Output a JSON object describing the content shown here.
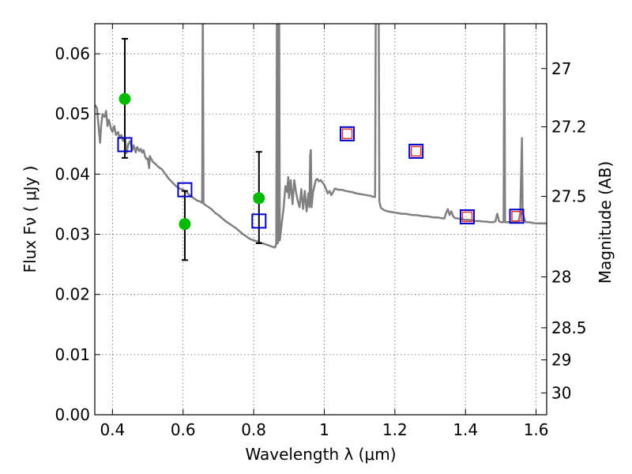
{
  "chart_data": {
    "type": "scatter",
    "title": "",
    "xlabel": "Wavelength  λ (μm)",
    "ylabel": "Flux  Fν  ( μJy )",
    "ylabel_right": "Magnitude (AB)",
    "xlim": [
      0.35,
      1.63
    ],
    "ylim": [
      0.0,
      0.065
    ],
    "grid": true,
    "x_ticks": [
      0.4,
      0.6,
      0.8,
      1.0,
      1.2,
      1.4,
      1.6
    ],
    "x_tick_labels": [
      "0.4",
      "0.6",
      "0.8",
      "1",
      "1.2",
      "1.4",
      "1.6"
    ],
    "y_ticks": [
      0.0,
      0.01,
      0.02,
      0.03,
      0.04,
      0.05,
      0.06
    ],
    "y_tick_labels": [
      "0.00",
      "0.01",
      "0.02",
      "0.03",
      "0.04",
      "0.05",
      "0.06"
    ],
    "right_ticks": [
      {
        "label": "27",
        "mag": 27.0
      },
      {
        "label": "27.2",
        "mag": 27.2
      },
      {
        "label": "27.5",
        "mag": 27.5
      },
      {
        "label": "28",
        "mag": 28.0
      },
      {
        "label": "28.5",
        "mag": 28.5
      },
      {
        "label": "29",
        "mag": 29.0
      },
      {
        "label": "30",
        "mag": 30.0
      }
    ],
    "series": [
      {
        "kind": "line",
        "color": "#808080",
        "points": [
          [
            0.35,
            0.0515
          ],
          [
            0.356,
            0.051
          ],
          [
            0.362,
            0.047
          ],
          [
            0.365,
            0.0452
          ],
          [
            0.368,
            0.048
          ],
          [
            0.372,
            0.05
          ],
          [
            0.378,
            0.0495
          ],
          [
            0.382,
            0.0505
          ],
          [
            0.386,
            0.048
          ],
          [
            0.39,
            0.049
          ],
          [
            0.396,
            0.0475
          ],
          [
            0.4,
            0.047
          ],
          [
            0.405,
            0.048
          ],
          [
            0.41,
            0.0465
          ],
          [
            0.416,
            0.047
          ],
          [
            0.42,
            0.046
          ],
          [
            0.425,
            0.0465
          ],
          [
            0.43,
            0.0455
          ],
          [
            0.436,
            0.046
          ],
          [
            0.44,
            0.0435
          ],
          [
            0.445,
            0.045
          ],
          [
            0.45,
            0.0455
          ],
          [
            0.456,
            0.044
          ],
          [
            0.46,
            0.0448
          ],
          [
            0.466,
            0.0436
          ],
          [
            0.47,
            0.0445
          ],
          [
            0.476,
            0.0438
          ],
          [
            0.48,
            0.0442
          ],
          [
            0.484,
            0.0436
          ],
          [
            0.488,
            0.044
          ],
          [
            0.492,
            0.043
          ],
          [
            0.496,
            0.0425
          ],
          [
            0.5,
            0.0426
          ],
          [
            0.504,
            0.041
          ],
          [
            0.506,
            0.043
          ],
          [
            0.51,
            0.0425
          ],
          [
            0.515,
            0.042
          ],
          [
            0.52,
            0.0418
          ],
          [
            0.53,
            0.0412
          ],
          [
            0.54,
            0.0408
          ],
          [
            0.55,
            0.04
          ],
          [
            0.56,
            0.0392
          ],
          [
            0.57,
            0.0386
          ],
          [
            0.58,
            0.038
          ],
          [
            0.59,
            0.0376
          ],
          [
            0.6,
            0.0374
          ],
          [
            0.61,
            0.037
          ],
          [
            0.62,
            0.0364
          ],
          [
            0.63,
            0.036
          ],
          [
            0.64,
            0.0356
          ],
          [
            0.65,
            0.0354
          ],
          [
            0.654,
            0.0352
          ],
          [
            0.656,
            0.07
          ],
          [
            0.658,
            0.0352
          ],
          [
            0.66,
            0.035
          ],
          [
            0.67,
            0.0346
          ],
          [
            0.68,
            0.0342
          ],
          [
            0.69,
            0.0336
          ],
          [
            0.7,
            0.0332
          ],
          [
            0.71,
            0.0327
          ],
          [
            0.72,
            0.0322
          ],
          [
            0.73,
            0.0318
          ],
          [
            0.74,
            0.0314
          ],
          [
            0.75,
            0.031
          ],
          [
            0.76,
            0.0305
          ],
          [
            0.77,
            0.03
          ],
          [
            0.78,
            0.0296
          ],
          [
            0.79,
            0.0292
          ],
          [
            0.8,
            0.029
          ],
          [
            0.81,
            0.0288
          ],
          [
            0.82,
            0.0286
          ],
          [
            0.83,
            0.0284
          ],
          [
            0.84,
            0.0282
          ],
          [
            0.85,
            0.028
          ],
          [
            0.86,
            0.0278
          ],
          [
            0.862,
            0.028
          ],
          [
            0.864,
            0.0285
          ],
          [
            0.866,
            0.07
          ],
          [
            0.868,
            0.0285
          ],
          [
            0.87,
            0.029
          ],
          [
            0.872,
            0.07
          ],
          [
            0.874,
            0.029
          ],
          [
            0.88,
            0.032
          ],
          [
            0.885,
            0.0345
          ],
          [
            0.89,
            0.038
          ],
          [
            0.895,
            0.037
          ],
          [
            0.898,
            0.0395
          ],
          [
            0.9,
            0.036
          ],
          [
            0.905,
            0.039
          ],
          [
            0.91,
            0.035
          ],
          [
            0.915,
            0.039
          ],
          [
            0.92,
            0.037
          ],
          [
            0.925,
            0.0355
          ],
          [
            0.93,
            0.0345
          ],
          [
            0.935,
            0.0375
          ],
          [
            0.94,
            0.0342
          ],
          [
            0.945,
            0.0372
          ],
          [
            0.95,
            0.0338
          ],
          [
            0.955,
            0.0368
          ],
          [
            0.958,
            0.0345
          ],
          [
            0.96,
            0.043
          ],
          [
            0.962,
            0.044
          ],
          [
            0.964,
            0.0345
          ],
          [
            0.968,
            0.037
          ],
          [
            0.972,
            0.038
          ],
          [
            0.976,
            0.039
          ],
          [
            0.98,
            0.0392
          ],
          [
            0.985,
            0.0388
          ],
          [
            0.99,
            0.039
          ],
          [
            0.995,
            0.0386
          ],
          [
            1.0,
            0.0382
          ],
          [
            1.005,
            0.0375
          ],
          [
            1.01,
            0.0368
          ],
          [
            1.015,
            0.0372
          ],
          [
            1.02,
            0.0365
          ],
          [
            1.025,
            0.037
          ],
          [
            1.03,
            0.0376
          ],
          [
            1.04,
            0.0374
          ],
          [
            1.05,
            0.0374
          ],
          [
            1.06,
            0.0372
          ],
          [
            1.07,
            0.0371
          ],
          [
            1.08,
            0.037
          ],
          [
            1.09,
            0.0368
          ],
          [
            1.1,
            0.0367
          ],
          [
            1.11,
            0.0366
          ],
          [
            1.12,
            0.0365
          ],
          [
            1.13,
            0.0364
          ],
          [
            1.14,
            0.0362
          ],
          [
            1.144,
            0.0362
          ],
          [
            1.146,
            0.07
          ],
          [
            1.154,
            0.07
          ],
          [
            1.156,
            0.0355
          ],
          [
            1.16,
            0.0344
          ],
          [
            1.17,
            0.034
          ],
          [
            1.18,
            0.0338
          ],
          [
            1.19,
            0.0337
          ],
          [
            1.2,
            0.0336
          ],
          [
            1.21,
            0.0335
          ],
          [
            1.22,
            0.0334
          ],
          [
            1.23,
            0.0334
          ],
          [
            1.24,
            0.0333
          ],
          [
            1.25,
            0.0332
          ],
          [
            1.26,
            0.0332
          ],
          [
            1.27,
            0.0331
          ],
          [
            1.28,
            0.033
          ],
          [
            1.29,
            0.033
          ],
          [
            1.3,
            0.0329
          ],
          [
            1.31,
            0.0328
          ],
          [
            1.32,
            0.0328
          ],
          [
            1.33,
            0.0327
          ],
          [
            1.34,
            0.0326
          ],
          [
            1.345,
            0.0335
          ],
          [
            1.35,
            0.0342
          ],
          [
            1.355,
            0.0332
          ],
          [
            1.36,
            0.0338
          ],
          [
            1.365,
            0.033
          ],
          [
            1.37,
            0.0327
          ],
          [
            1.38,
            0.0326
          ],
          [
            1.39,
            0.0325
          ],
          [
            1.4,
            0.0324
          ],
          [
            1.41,
            0.0324
          ],
          [
            1.42,
            0.0323
          ],
          [
            1.43,
            0.0322
          ],
          [
            1.44,
            0.0322
          ],
          [
            1.45,
            0.0321
          ],
          [
            1.46,
            0.0321
          ],
          [
            1.47,
            0.032
          ],
          [
            1.48,
            0.032
          ],
          [
            1.485,
            0.0322
          ],
          [
            1.49,
            0.0334
          ],
          [
            1.495,
            0.0322
          ],
          [
            1.5,
            0.032
          ],
          [
            1.508,
            0.032
          ],
          [
            1.51,
            0.07
          ],
          [
            1.512,
            0.032
          ],
          [
            1.52,
            0.032
          ],
          [
            1.53,
            0.032
          ],
          [
            1.54,
            0.032
          ],
          [
            1.55,
            0.032
          ],
          [
            1.555,
            0.0335
          ],
          [
            1.56,
            0.046
          ],
          [
            1.562,
            0.0335
          ],
          [
            1.57,
            0.032
          ],
          [
            1.58,
            0.032
          ],
          [
            1.59,
            0.0319
          ],
          [
            1.6,
            0.0318
          ],
          [
            1.61,
            0.0318
          ],
          [
            1.62,
            0.0318
          ],
          [
            1.63,
            0.0318
          ]
        ]
      },
      {
        "kind": "markers",
        "marker": "filled-circle",
        "color": "#00bb00",
        "x": [
          0.435,
          0.605,
          0.815
        ],
        "y": [
          0.0525,
          0.0317,
          0.036
        ],
        "yerr_low": [
          0.0427,
          0.0257,
          0.0285
        ],
        "yerr_high": [
          0.0625,
          0.0372,
          0.0437
        ]
      },
      {
        "kind": "markers",
        "marker": "open-square",
        "color": "#0000cc",
        "x": [
          0.435,
          0.605,
          0.815,
          1.065,
          1.26,
          1.405,
          1.545
        ],
        "y": [
          0.0449,
          0.0374,
          0.0322,
          0.0467,
          0.0438,
          0.0329,
          0.033
        ]
      },
      {
        "kind": "markers",
        "marker": "small-open-square",
        "color": "#dd3333",
        "x": [
          1.065,
          1.26,
          1.405,
          1.545
        ],
        "y": [
          0.0467,
          0.0438,
          0.0329,
          0.033
        ]
      }
    ]
  }
}
